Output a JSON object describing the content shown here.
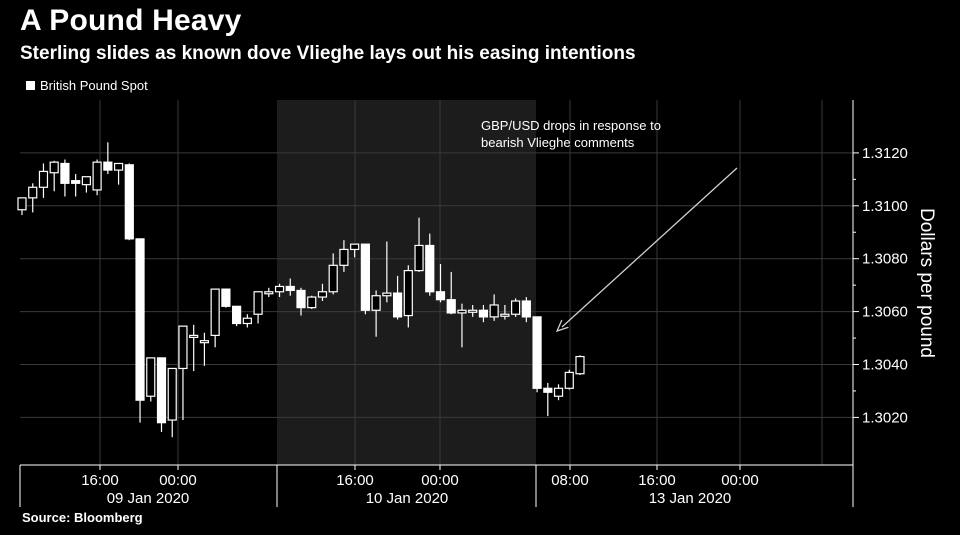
{
  "chart_data": {
    "type": "candlestick",
    "title": "A Pound Heavy",
    "subtitle": "Sterling slides as known dove Vlieghe lays out his easing intentions",
    "legend": [
      {
        "name": "British Pound Spot",
        "color": "#ffffff"
      }
    ],
    "ylabel": "Dollars per pound",
    "ylim": [
      1.3002,
      1.314
    ],
    "y_ticks": [
      "1.3020",
      "1.3040",
      "1.3060",
      "1.3080",
      "1.3100",
      "1.3120"
    ],
    "x_time_ticks": [
      "16:00",
      "00:00",
      "16:00",
      "00:00",
      "08:00",
      "16:00",
      "00:00"
    ],
    "x_date_labels": [
      "09 Jan 2020",
      "10 Jan 2020",
      "13 Jan 2020"
    ],
    "annotation": "GBP/USD drops in response to\nbearish Vlieghe comments",
    "source": "Source: Bloomberg",
    "candles": [
      {
        "o": 1.30985,
        "h": 1.3103,
        "l": 1.30965,
        "c": 1.3103
      },
      {
        "o": 1.3103,
        "h": 1.31085,
        "l": 1.30975,
        "c": 1.3107
      },
      {
        "o": 1.3107,
        "h": 1.3116,
        "l": 1.3103,
        "c": 1.3113
      },
      {
        "o": 1.31125,
        "h": 1.3117,
        "l": 1.31055,
        "c": 1.31165
      },
      {
        "o": 1.3116,
        "h": 1.31175,
        "l": 1.31035,
        "c": 1.31085
      },
      {
        "o": 1.31095,
        "h": 1.3112,
        "l": 1.31035,
        "c": 1.31085
      },
      {
        "o": 1.3108,
        "h": 1.3111,
        "l": 1.3105,
        "c": 1.3111
      },
      {
        "o": 1.3106,
        "h": 1.31175,
        "l": 1.3104,
        "c": 1.31165
      },
      {
        "o": 1.31165,
        "h": 1.3124,
        "l": 1.3112,
        "c": 1.31135
      },
      {
        "o": 1.31135,
        "h": 1.3116,
        "l": 1.3108,
        "c": 1.3116
      },
      {
        "o": 1.31155,
        "h": 1.3116,
        "l": 1.3087,
        "c": 1.30875
      },
      {
        "o": 1.30875,
        "h": 1.30875,
        "l": 1.3018,
        "c": 1.30265
      },
      {
        "o": 1.3028,
        "h": 1.30425,
        "l": 1.3026,
        "c": 1.30425
      },
      {
        "o": 1.30425,
        "h": 1.30425,
        "l": 1.30145,
        "c": 1.3018
      },
      {
        "o": 1.3019,
        "h": 1.30385,
        "l": 1.30125,
        "c": 1.30385
      },
      {
        "o": 1.30385,
        "h": 1.30545,
        "l": 1.3019,
        "c": 1.30545
      },
      {
        "o": 1.3051,
        "h": 1.3055,
        "l": 1.30375,
        "c": 1.3051
      },
      {
        "o": 1.3049,
        "h": 1.3052,
        "l": 1.30395,
        "c": 1.3049
      },
      {
        "o": 1.3051,
        "h": 1.30685,
        "l": 1.30465,
        "c": 1.30685
      },
      {
        "o": 1.30685,
        "h": 1.30685,
        "l": 1.30615,
        "c": 1.3062
      },
      {
        "o": 1.3062,
        "h": 1.3062,
        "l": 1.30545,
        "c": 1.30555
      },
      {
        "o": 1.30555,
        "h": 1.3059,
        "l": 1.3054,
        "c": 1.30575
      },
      {
        "o": 1.3059,
        "h": 1.30675,
        "l": 1.30555,
        "c": 1.30675
      },
      {
        "o": 1.30675,
        "h": 1.3069,
        "l": 1.30655,
        "c": 1.30675
      },
      {
        "o": 1.30675,
        "h": 1.30705,
        "l": 1.30655,
        "c": 1.30695
      },
      {
        "o": 1.30695,
        "h": 1.30725,
        "l": 1.3066,
        "c": 1.3068
      },
      {
        "o": 1.3068,
        "h": 1.3069,
        "l": 1.30585,
        "c": 1.30615
      },
      {
        "o": 1.30615,
        "h": 1.3066,
        "l": 1.3061,
        "c": 1.30655
      },
      {
        "o": 1.30655,
        "h": 1.30705,
        "l": 1.3064,
        "c": 1.30675
      },
      {
        "o": 1.30675,
        "h": 1.3082,
        "l": 1.30665,
        "c": 1.30775
      },
      {
        "o": 1.30775,
        "h": 1.3087,
        "l": 1.3075,
        "c": 1.30835
      },
      {
        "o": 1.30835,
        "h": 1.30855,
        "l": 1.30805,
        "c": 1.30855
      },
      {
        "o": 1.30855,
        "h": 1.30855,
        "l": 1.3059,
        "c": 1.30605
      },
      {
        "o": 1.30605,
        "h": 1.3068,
        "l": 1.30505,
        "c": 1.3066
      },
      {
        "o": 1.3066,
        "h": 1.30865,
        "l": 1.30635,
        "c": 1.3067
      },
      {
        "o": 1.3067,
        "h": 1.30735,
        "l": 1.3057,
        "c": 1.3058
      },
      {
        "o": 1.30585,
        "h": 1.30775,
        "l": 1.3054,
        "c": 1.30755
      },
      {
        "o": 1.30755,
        "h": 1.30955,
        "l": 1.3075,
        "c": 1.3085
      },
      {
        "o": 1.3085,
        "h": 1.30895,
        "l": 1.3066,
        "c": 1.30675
      },
      {
        "o": 1.30675,
        "h": 1.3078,
        "l": 1.30635,
        "c": 1.30645
      },
      {
        "o": 1.30645,
        "h": 1.3075,
        "l": 1.3059,
        "c": 1.30595
      },
      {
        "o": 1.30595,
        "h": 1.3063,
        "l": 1.30465,
        "c": 1.30605
      },
      {
        "o": 1.30605,
        "h": 1.30625,
        "l": 1.3058,
        "c": 1.30605
      },
      {
        "o": 1.30605,
        "h": 1.30625,
        "l": 1.3056,
        "c": 1.3058
      },
      {
        "o": 1.3058,
        "h": 1.30665,
        "l": 1.30565,
        "c": 1.30625
      },
      {
        "o": 1.3059,
        "h": 1.30625,
        "l": 1.3057,
        "c": 1.3059
      },
      {
        "o": 1.3059,
        "h": 1.3065,
        "l": 1.3058,
        "c": 1.3064
      },
      {
        "o": 1.3064,
        "h": 1.30655,
        "l": 1.3056,
        "c": 1.3058
      },
      {
        "o": 1.3058,
        "h": 1.3058,
        "l": 1.30295,
        "c": 1.3031
      },
      {
        "o": 1.3031,
        "h": 1.3033,
        "l": 1.30205,
        "c": 1.30295
      },
      {
        "o": 1.3028,
        "h": 1.30325,
        "l": 1.30265,
        "c": 1.3031
      },
      {
        "o": 1.3031,
        "h": 1.3038,
        "l": 1.30305,
        "c": 1.3037
      },
      {
        "o": 1.30365,
        "h": 1.30435,
        "l": 1.3036,
        "c": 1.3043
      }
    ]
  }
}
